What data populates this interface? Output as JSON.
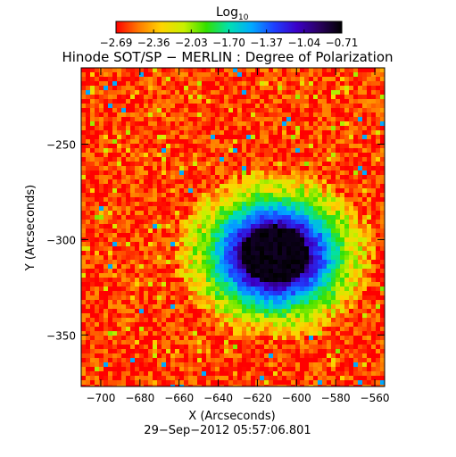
{
  "colorbar": {
    "label_main": "Log",
    "label_sub": "10",
    "tick_labels": [
      "−2.69",
      "−2.36",
      "−2.03",
      "−1.70",
      "−1.37",
      "−1.04",
      "−0.71"
    ],
    "range": [
      -2.69,
      -0.71
    ],
    "colormap": [
      "#ff0000",
      "#ff7a00",
      "#ffd400",
      "#c9f000",
      "#33e000",
      "#00e0b0",
      "#00aaff",
      "#1e40ff",
      "#3b00c8",
      "#2a0060",
      "#000000"
    ]
  },
  "chart_data": {
    "type": "heatmap",
    "title": "Hinode SOT/SP − MERLIN : Degree of Polarization",
    "xlabel": "X (Arcseconds)",
    "ylabel": "Y (Arcseconds)",
    "xlim": [
      -710,
      -555
    ],
    "ylim": [
      -377,
      -210
    ],
    "x_ticks": [
      -700,
      -680,
      -660,
      -640,
      -620,
      -600,
      -580,
      -560
    ],
    "x_tick_labels": [
      "−700",
      "−680",
      "−660",
      "−640",
      "−620",
      "−600",
      "−580",
      "−560"
    ],
    "y_ticks": [
      -250,
      -300,
      -350
    ],
    "y_tick_labels": [
      "−250",
      "−300",
      "−350"
    ],
    "value_label": "Log10 Degree of Polarization",
    "value_range": [
      -2.69,
      -0.71
    ],
    "features": {
      "sunspot_umbra_center": [
        -611,
        -308
      ],
      "background_level": -2.6,
      "umbra_level": -0.75
    },
    "footer": "29−Sep−2012 05:57:06.801"
  }
}
